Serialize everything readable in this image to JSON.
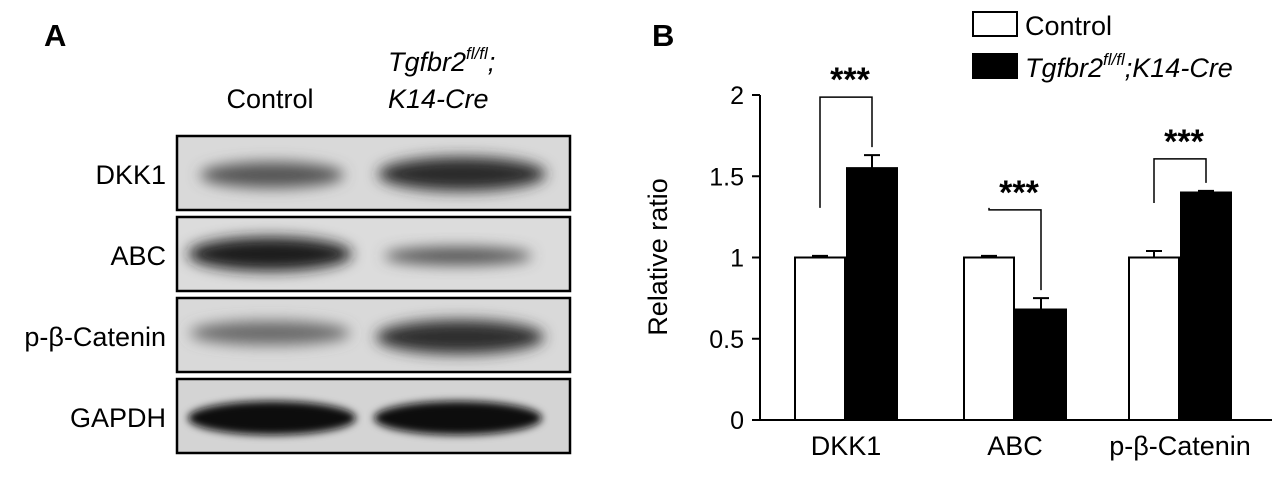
{
  "panel_a": {
    "letter": "A",
    "col_control": "Control",
    "col_mutant_gene": "Tgfbr2",
    "col_mutant_sup": "fl/fl",
    "col_mutant_semicolon": ";",
    "col_mutant_line2": "K14-Cre",
    "rows": [
      {
        "label": "DKK1"
      },
      {
        "label": "ABC"
      },
      {
        "label": "p-β-Catenin"
      },
      {
        "label": "GAPDH"
      }
    ]
  },
  "panel_b": {
    "letter": "B",
    "legend": {
      "control": "Control",
      "mutant_gene": "Tgfbr2",
      "mutant_sup": "fl/fl",
      "mutant_rest": ";K14-Cre"
    },
    "significance": "***"
  },
  "chart_data": {
    "type": "bar",
    "title": "",
    "xlabel": "",
    "ylabel": "Relative ratio",
    "ylim": [
      0,
      2
    ],
    "yticks": [
      "0",
      "0.5",
      "1",
      "1.5",
      "2"
    ],
    "categories": [
      "DKK1",
      "ABC",
      "p-β-Catenin"
    ],
    "series": [
      {
        "name": "Control",
        "color": "#ffffff",
        "values": [
          1.0,
          1.0,
          1.0
        ],
        "errors": [
          0.01,
          0.01,
          0.04
        ]
      },
      {
        "name": "Tgfbr2fl/fl;K14-Cre",
        "color": "#000000",
        "values": [
          1.55,
          0.68,
          1.4
        ],
        "errors": [
          0.08,
          0.07,
          0.01
        ]
      }
    ],
    "annotations": [
      "***",
      "***",
      "***"
    ],
    "grid": false,
    "legend_position": "top-right"
  }
}
